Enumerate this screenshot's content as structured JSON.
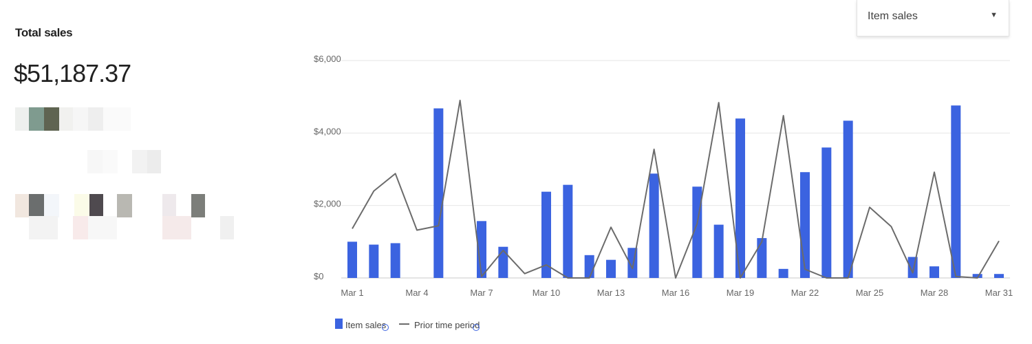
{
  "summary": {
    "label": "Total sales",
    "amount": "$51,187.37"
  },
  "dropdown": {
    "selected": "Item sales",
    "arrow_icon": "caret-down-icon"
  },
  "colors": {
    "bar": "#3b63e0",
    "line": "#6b6b6b",
    "grid": "#e6e6e6",
    "axis": "#c8c8c8",
    "info_icon": "#3b63e0"
  },
  "chart_data": {
    "type": "bar",
    "x": [
      "Mar 1",
      "Mar 2",
      "Mar 3",
      "Mar 4",
      "Mar 5",
      "Mar 6",
      "Mar 7",
      "Mar 8",
      "Mar 9",
      "Mar 10",
      "Mar 11",
      "Mar 12",
      "Mar 13",
      "Mar 14",
      "Mar 15",
      "Mar 16",
      "Mar 17",
      "Mar 18",
      "Mar 19",
      "Mar 20",
      "Mar 21",
      "Mar 22",
      "Mar 23",
      "Mar 24",
      "Mar 25",
      "Mar 26",
      "Mar 27",
      "Mar 28",
      "Mar 29",
      "Mar 30",
      "Mar 31"
    ],
    "x_tick_labels": [
      "Mar 1",
      "Mar 4",
      "Mar 7",
      "Mar 10",
      "Mar 13",
      "Mar 16",
      "Mar 19",
      "Mar 22",
      "Mar 25",
      "Mar 28",
      "Mar 31"
    ],
    "y_ticks": [
      0,
      2000,
      4000,
      6000
    ],
    "y_tick_labels": [
      "$0",
      "$2,000",
      "$4,000",
      "$6,000"
    ],
    "ylim": [
      0,
      6000
    ],
    "grid": true,
    "legend_position": "bottom-left",
    "series": [
      {
        "name": "Item sales",
        "type": "bar",
        "values": [
          1000,
          920,
          960,
          0,
          4680,
          0,
          1570,
          860,
          0,
          2380,
          2570,
          630,
          500,
          830,
          2880,
          0,
          2520,
          1470,
          4400,
          1100,
          250,
          2920,
          3600,
          4340,
          0,
          0,
          580,
          320,
          4760,
          110,
          110
        ]
      },
      {
        "name": "Prior time period",
        "type": "line",
        "values": [
          1360,
          2400,
          2880,
          1320,
          1440,
          4900,
          40,
          760,
          120,
          360,
          0,
          0,
          1400,
          260,
          3550,
          0,
          1500,
          4840,
          0,
          1000,
          4480,
          240,
          0,
          0,
          1950,
          1420,
          140,
          2920,
          40,
          0,
          1020
        ]
      }
    ]
  }
}
